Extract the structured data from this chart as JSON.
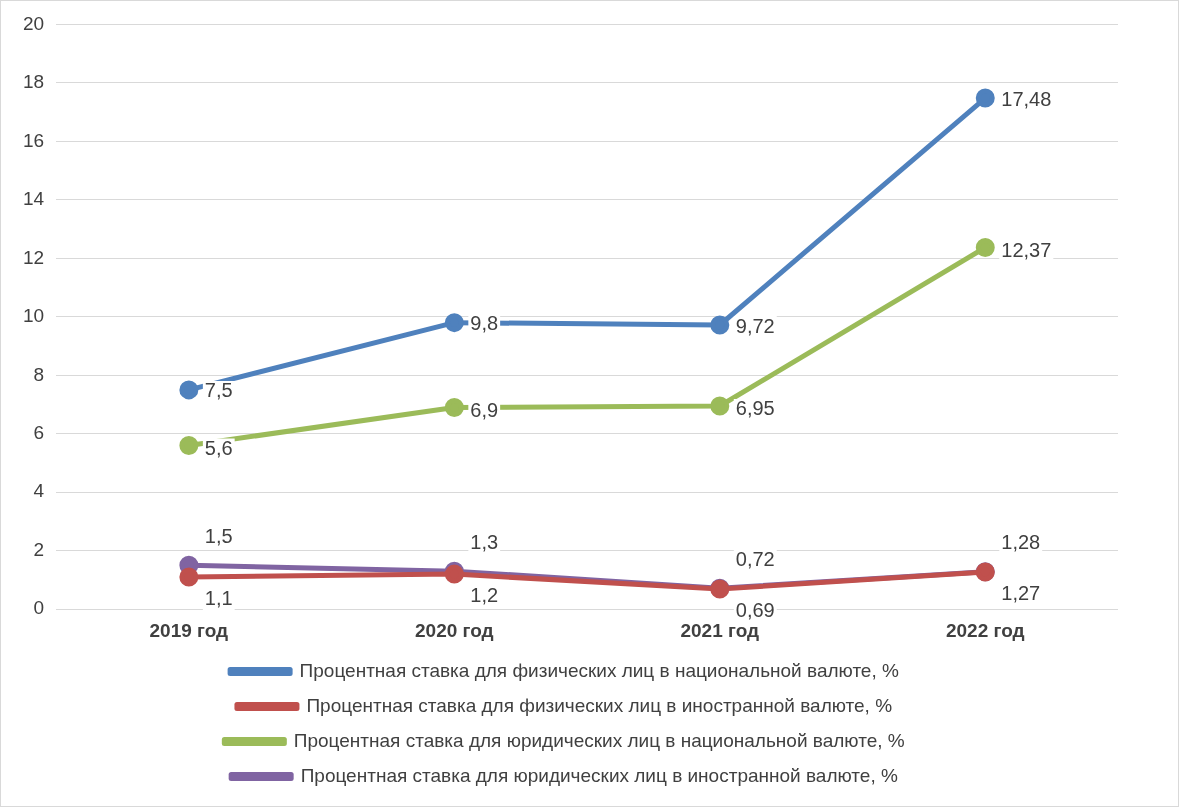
{
  "chart_data": {
    "type": "line",
    "categories": [
      "2019 год",
      "2020 год",
      "2021 год",
      "2022 год"
    ],
    "series": [
      {
        "name": "Процентная ставка для физических лиц в национальной валюте, %",
        "color": "#4f81bd",
        "values": [
          7.5,
          9.8,
          9.72,
          17.48
        ],
        "value_labels": [
          "7,5",
          "9,8",
          "9,72",
          "17,48"
        ]
      },
      {
        "name": "Процентная ставка для физических лиц в иностранной валюте, %",
        "color": "#c0504d",
        "values": [
          1.1,
          1.2,
          0.69,
          1.27
        ],
        "value_labels": [
          "1,1",
          "1,2",
          "0,69",
          "1,27"
        ]
      },
      {
        "name": "Процентная ставка для юридических лиц в национальной валюте, %",
        "color": "#9bbb59",
        "values": [
          5.6,
          6.9,
          6.95,
          12.37
        ],
        "value_labels": [
          "5,6",
          "6,9",
          "6,95",
          "12,37"
        ]
      },
      {
        "name": "Процентная ставка для юридических лиц в иностранной валюте, %",
        "color": "#8064a2",
        "values": [
          1.5,
          1.3,
          0.72,
          1.28
        ],
        "value_labels": [
          "1,5",
          "1,3",
          "0,72",
          "1,28"
        ]
      }
    ],
    "ylim": [
      0,
      20
    ],
    "yticks": [
      0,
      2,
      4,
      6,
      8,
      10,
      12,
      14,
      16,
      18,
      20
    ],
    "grid": "y",
    "legend": "bottom",
    "marker": "circle",
    "line_style": "solid"
  }
}
